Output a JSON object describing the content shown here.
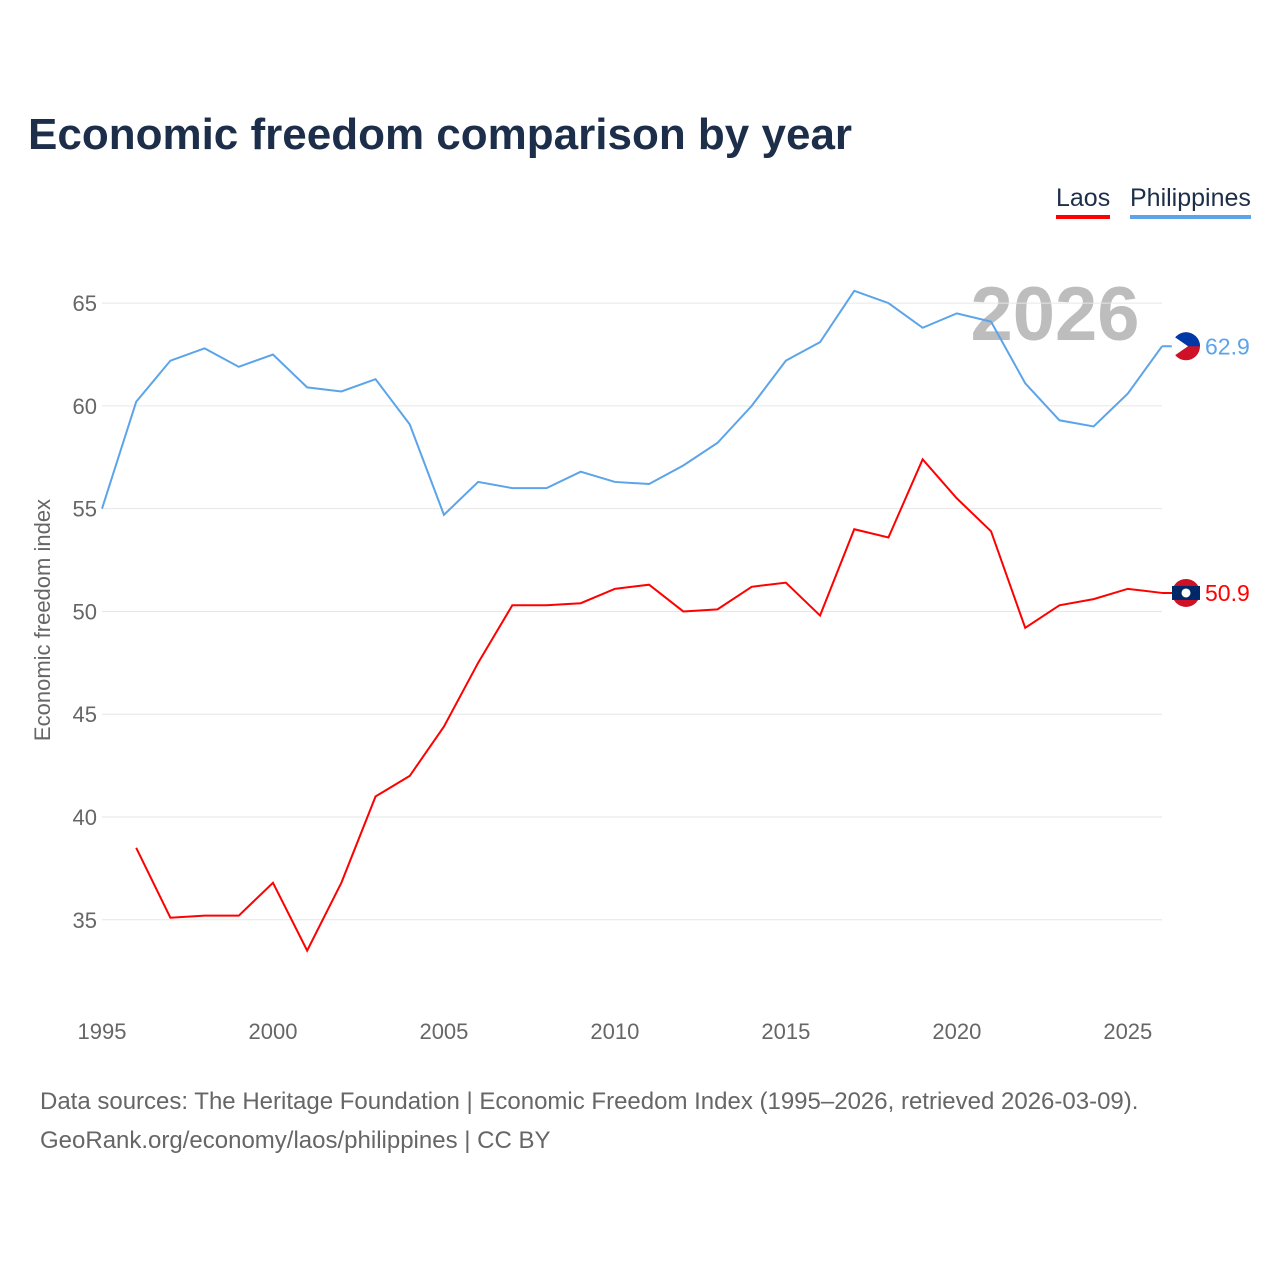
{
  "chart_data": {
    "type": "line",
    "title": "Economic freedom comparison by year",
    "xlabel": "",
    "ylabel": "Economic freedom index",
    "xlim": [
      1995,
      2026
    ],
    "ylim": [
      31,
      67
    ],
    "xticks": [
      1995,
      2000,
      2005,
      2010,
      2015,
      2020,
      2025
    ],
    "yticks": [
      35,
      40,
      45,
      50,
      55,
      60,
      65
    ],
    "year_watermark": "2026",
    "legend_position": "top-right",
    "series": [
      {
        "name": "Laos",
        "color": "#ff0000",
        "end_label": "50.9",
        "x": [
          1996,
          1997,
          1998,
          1999,
          2000,
          2001,
          2002,
          2003,
          2004,
          2005,
          2006,
          2007,
          2008,
          2009,
          2010,
          2011,
          2012,
          2013,
          2014,
          2015,
          2016,
          2017,
          2018,
          2019,
          2020,
          2021,
          2022,
          2023,
          2024,
          2025,
          2026
        ],
        "y": [
          38.5,
          35.1,
          35.2,
          35.2,
          36.8,
          33.5,
          36.8,
          41.0,
          42.0,
          44.4,
          47.5,
          50.3,
          50.3,
          50.4,
          51.1,
          51.3,
          50.0,
          50.1,
          51.2,
          51.4,
          49.8,
          54.0,
          53.6,
          57.4,
          55.5,
          53.9,
          49.2,
          50.3,
          50.6,
          51.1,
          50.9
        ]
      },
      {
        "name": "Philippines",
        "color": "#5ba4ea",
        "end_label": "62.9",
        "x": [
          1995,
          1996,
          1997,
          1998,
          1999,
          2000,
          2001,
          2002,
          2003,
          2004,
          2005,
          2006,
          2007,
          2008,
          2009,
          2010,
          2011,
          2012,
          2013,
          2014,
          2015,
          2016,
          2017,
          2018,
          2019,
          2020,
          2021,
          2022,
          2023,
          2024,
          2025,
          2026
        ],
        "y": [
          55.0,
          60.2,
          62.2,
          62.8,
          61.9,
          62.5,
          60.9,
          60.7,
          61.3,
          59.1,
          54.7,
          56.3,
          56.0,
          56.0,
          56.8,
          56.3,
          56.2,
          57.1,
          58.2,
          60.0,
          62.2,
          63.1,
          65.6,
          65.0,
          63.8,
          64.5,
          64.1,
          61.1,
          59.3,
          59.0,
          60.6,
          62.9
        ]
      }
    ]
  },
  "footer": {
    "line1": "Data sources: The Heritage Foundation | Economic Freedom Index (1995–2026, retrieved 2026-03-09).",
    "line2": "GeoRank.org/economy/laos/philippines | CC BY"
  }
}
